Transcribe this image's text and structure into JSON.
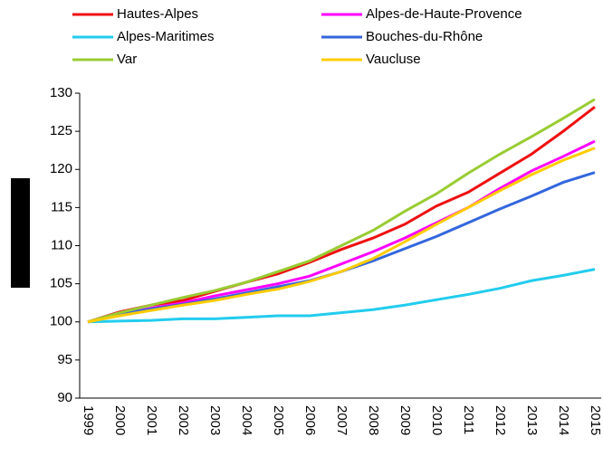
{
  "chart_data": {
    "type": "line",
    "categories": [
      "1999",
      "2000",
      "2001",
      "2002",
      "2003",
      "2004",
      "2005",
      "2006",
      "2007",
      "2008",
      "2009",
      "2010",
      "2011",
      "2012",
      "2013",
      "2014",
      "2015"
    ],
    "series": [
      {
        "name": "Hautes-Alpes",
        "color": "#ee1111",
        "values": [
          100,
          101.3,
          102.2,
          102.8,
          104,
          105.2,
          106.3,
          107.8,
          109.5,
          111,
          112.8,
          115.2,
          117,
          119.5,
          122,
          125,
          128.2
        ]
      },
      {
        "name": "Alpes-de-Haute-Provence",
        "color": "#ff00ff",
        "values": [
          100,
          101,
          101.8,
          102.5,
          103.4,
          104.2,
          105,
          106,
          107.6,
          109.2,
          111,
          113,
          115,
          117.5,
          119.8,
          121.7,
          123.7
        ]
      },
      {
        "name": "Alpes-Maritimes",
        "color": "#22ccee",
        "values": [
          100,
          100.1,
          100.2,
          100.4,
          100.4,
          100.6,
          100.8,
          100.8,
          101.2,
          101.6,
          102.2,
          102.9,
          103.6,
          104.4,
          105.4,
          106.1,
          106.9
        ]
      },
      {
        "name": "Bouches-du-Rhône",
        "color": "#3366dd",
        "values": [
          100,
          101,
          101.7,
          102.3,
          103,
          103.8,
          104.6,
          105.4,
          106.6,
          108,
          109.6,
          111.2,
          113,
          114.8,
          116.5,
          118.3,
          119.6
        ]
      },
      {
        "name": "Var",
        "color": "#99cc33",
        "values": [
          100,
          101.2,
          102.2,
          103.2,
          104.1,
          105.2,
          106.6,
          108,
          110,
          112,
          114.5,
          116.8,
          119.5,
          122,
          124.3,
          126.7,
          129.2
        ]
      },
      {
        "name": "Vaucluse",
        "color": "#ffcc00",
        "values": [
          100,
          100.8,
          101.5,
          102.2,
          102.8,
          103.6,
          104.3,
          105.3,
          106.6,
          108.3,
          110.5,
          112.8,
          115,
          117.2,
          119.3,
          121.2,
          122.8
        ]
      }
    ],
    "ylim": [
      90,
      130
    ],
    "yticks": [
      90,
      95,
      100,
      105,
      110,
      115,
      120,
      125,
      130
    ],
    "grid": false
  }
}
